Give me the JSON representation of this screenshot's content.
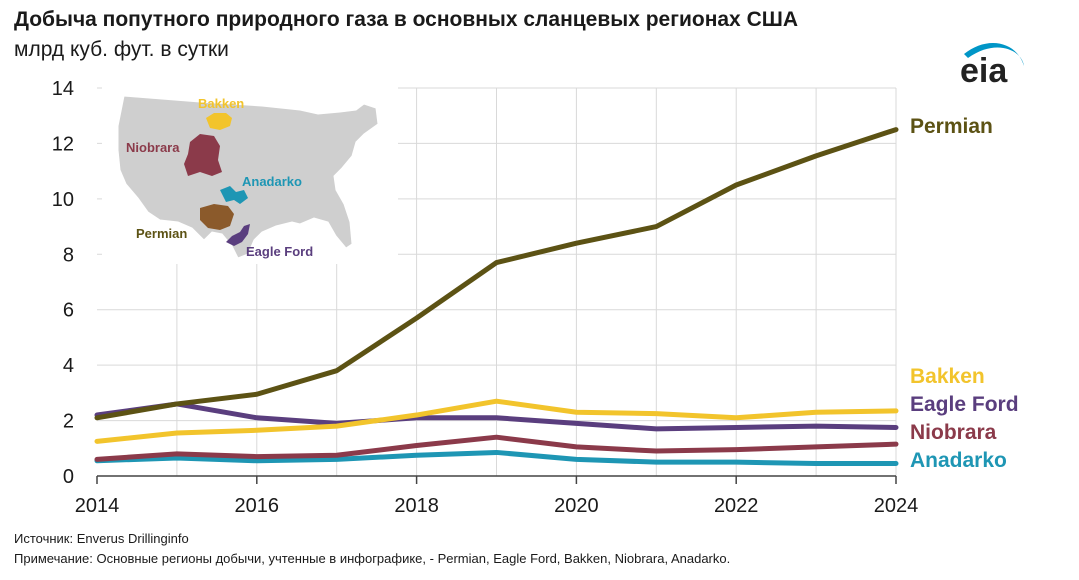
{
  "header": {
    "title": "Добыча попутного природного газа в основных сланцевых регионах США",
    "subtitle": "млрд куб. фут. в сутки"
  },
  "logo": {
    "text": "eia",
    "color": "#0096c7"
  },
  "map_labels": {
    "bakken": "Bakken",
    "niobrara": "Niobrara",
    "anadarko": "Anadarko",
    "permian": "Permian",
    "eagle_ford": "Eagle Ford"
  },
  "footer": {
    "source": "Источник: Enverus Drillinginfo",
    "note": "Примечание: Основные регионы добычи, учтенные в инфографике, - Permian, Eagle Ford, Bakken, Niobrara, Anadarko."
  },
  "chart_data": {
    "type": "line",
    "title": "Добыча попутного природного газа в основных сланцевых регионах США",
    "ylabel": "млрд куб. фут. в сутки",
    "xlabel": "",
    "x": [
      2014,
      2015,
      2016,
      2017,
      2018,
      2019,
      2020,
      2021,
      2022,
      2023,
      2024
    ],
    "xlim": [
      2014,
      2024
    ],
    "ylim": [
      0,
      14
    ],
    "xticks": [
      2014,
      2016,
      2018,
      2020,
      2022,
      2024
    ],
    "yticks": [
      0,
      2,
      4,
      6,
      8,
      10,
      12,
      14
    ],
    "grid": true,
    "series": [
      {
        "name": "Permian",
        "color": "#5c5214",
        "values": [
          2.1,
          2.6,
          2.95,
          3.8,
          5.7,
          7.7,
          8.4,
          9.0,
          10.5,
          11.55,
          12.5
        ]
      },
      {
        "name": "Bakken",
        "color": "#f2c42c",
        "values": [
          1.25,
          1.55,
          1.65,
          1.8,
          2.2,
          2.7,
          2.3,
          2.25,
          2.1,
          2.3,
          2.35
        ]
      },
      {
        "name": "Eagle Ford",
        "color": "#5a3e7e",
        "values": [
          2.2,
          2.6,
          2.1,
          1.9,
          2.1,
          2.1,
          1.9,
          1.7,
          1.75,
          1.8,
          1.75
        ]
      },
      {
        "name": "Niobrara",
        "color": "#8b3a4a",
        "values": [
          0.6,
          0.8,
          0.7,
          0.75,
          1.1,
          1.4,
          1.05,
          0.9,
          0.95,
          1.05,
          1.15
        ]
      },
      {
        "name": "Anadarko",
        "color": "#1e96b4",
        "values": [
          0.55,
          0.65,
          0.55,
          0.6,
          0.75,
          0.85,
          0.6,
          0.5,
          0.5,
          0.45,
          0.45
        ]
      }
    ]
  }
}
